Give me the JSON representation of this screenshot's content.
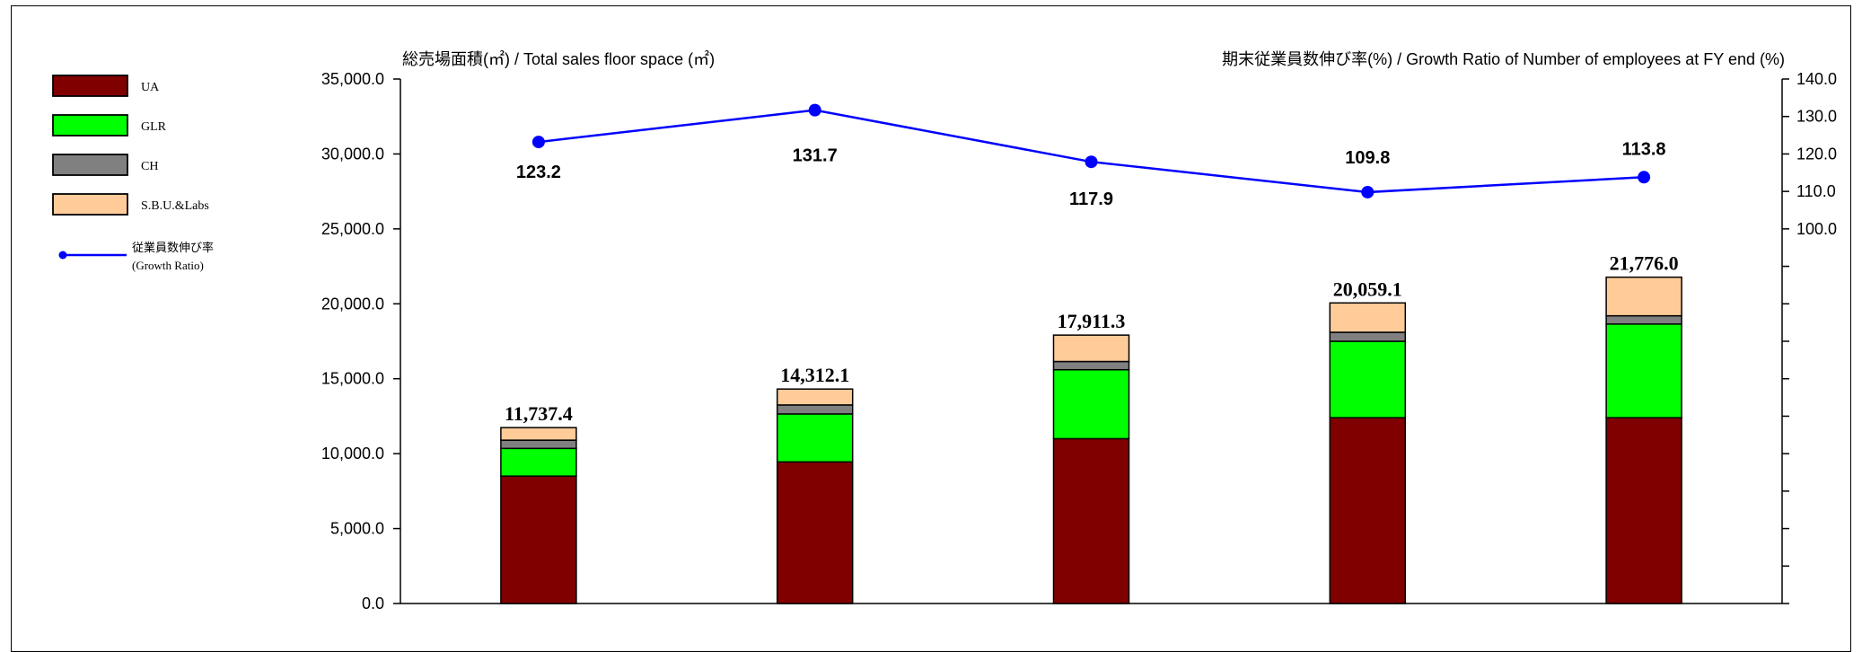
{
  "chart_data": {
    "type": "bar",
    "stacked": true,
    "title": "",
    "left_axis_title": "総売場面積(㎡) / Total sales floor space (㎡)",
    "right_axis_title": "期末従業員数伸び率(%) / Growth Ratio of  Number of employees at FY end (%)",
    "left_ylim": [
      0,
      35000
    ],
    "left_ticks": [
      "0.0",
      "5,000.0",
      "10,000.0",
      "15,000.0",
      "20,000.0",
      "25,000.0",
      "30,000.0",
      "35,000.0"
    ],
    "right_ylim": [
      0,
      140
    ],
    "right_ticks": [
      "100.0",
      "110.0",
      "120.0",
      "130.0",
      "140.0"
    ],
    "categories": [
      "",
      "",
      "",
      "",
      ""
    ],
    "series": [
      {
        "name": "UA",
        "color": "#800000",
        "values": [
          8500,
          9450,
          11000,
          12400,
          12400
        ]
      },
      {
        "name": "GLR",
        "color": "#00ff00",
        "values": [
          1850,
          3200,
          4600,
          5100,
          6250
        ]
      },
      {
        "name": "CH",
        "color": "#808080",
        "values": [
          550,
          600,
          550,
          600,
          550
        ]
      },
      {
        "name": "S.B.U.&Labs",
        "color": "#ffcc99",
        "values": [
          837.4,
          1062.1,
          1761.3,
          1959.1,
          2576.0
        ]
      }
    ],
    "totals": [
      "11,737.4",
      "14,312.1",
      "17,911.3",
      "20,059.1",
      "21,776.0"
    ],
    "line": {
      "name": "従業員数伸び率",
      "name_sub": "(Growth Ratio)",
      "color": "#0000ff",
      "values": [
        123.2,
        131.7,
        117.9,
        109.8,
        113.8
      ],
      "labels": [
        "123.2",
        "131.7",
        "117.9",
        "109.8",
        "113.8"
      ]
    },
    "legend_position": "left"
  }
}
